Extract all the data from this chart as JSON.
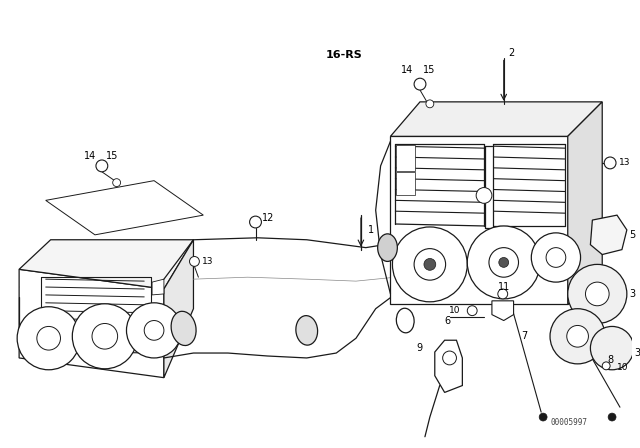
{
  "background_color": "#ffffff",
  "line_color": "#1a1a1a",
  "fig_width": 6.4,
  "fig_height": 4.48,
  "dpi": 100,
  "watermark": "00005997",
  "gray": "#888888",
  "light_gray": "#cccccc"
}
